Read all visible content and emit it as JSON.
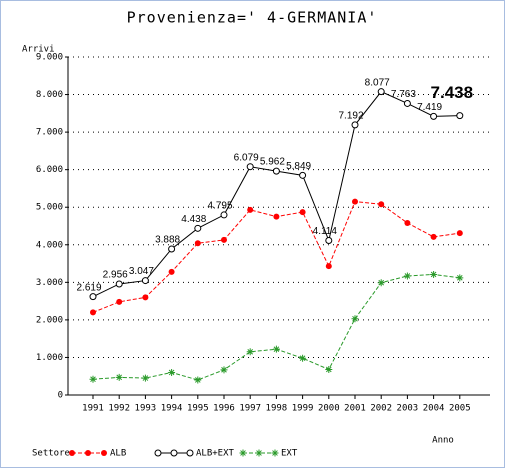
{
  "chart_data": {
    "type": "line",
    "title": "Provenienza=' 4-GERMANIA'",
    "y_label": "Arrivi",
    "x_label": "Anno",
    "legend_title": "Settore",
    "grid": true,
    "categories": [
      "1991",
      "1992",
      "1993",
      "1994",
      "1995",
      "1996",
      "1997",
      "1998",
      "1999",
      "2000",
      "2001",
      "2002",
      "2003",
      "2004",
      "2005"
    ],
    "ylim": [
      0,
      9000
    ],
    "yticks": [
      {
        "value": 0,
        "label": "0"
      },
      {
        "value": 1000,
        "label": "1.000"
      },
      {
        "value": 2000,
        "label": "2.000"
      },
      {
        "value": 3000,
        "label": "3.000"
      },
      {
        "value": 4000,
        "label": "4.000"
      },
      {
        "value": 5000,
        "label": "5.000"
      },
      {
        "value": 6000,
        "label": "6.000"
      },
      {
        "value": 7000,
        "label": "7.000"
      },
      {
        "value": 8000,
        "label": "8.000"
      },
      {
        "value": 9000,
        "label": "9.000"
      }
    ],
    "series": [
      {
        "name": "ALB",
        "color": "#ff0000",
        "marker": "dot",
        "dashed": true,
        "values": [
          2200,
          2480,
          2600,
          3280,
          4040,
          4130,
          4930,
          4750,
          4870,
          3430,
          5150,
          5080,
          4580,
          4210,
          4310
        ]
      },
      {
        "name": "ALB+EXT",
        "color": "#000000",
        "marker": "circle",
        "dashed": false,
        "values": [
          2619,
          2956,
          3047,
          3888,
          4438,
          4795,
          6079,
          5962,
          5849,
          4114,
          7192,
          8077,
          7763,
          7419,
          7438
        ],
        "value_labels": [
          "2.619",
          "2.956",
          "3.047",
          "3.888",
          "4.438",
          "4.795",
          "6.079",
          "5.962",
          "5.849",
          "4.114",
          "7.192",
          "8.077",
          "7.763",
          "7.419",
          "7.438"
        ]
      },
      {
        "name": "EXT",
        "color": "#2a9a2a",
        "marker": "star",
        "dashed": true,
        "values": [
          420,
          470,
          450,
          600,
          400,
          670,
          1150,
          1220,
          980,
          680,
          2030,
          2990,
          3170,
          3210,
          3120
        ]
      }
    ]
  }
}
